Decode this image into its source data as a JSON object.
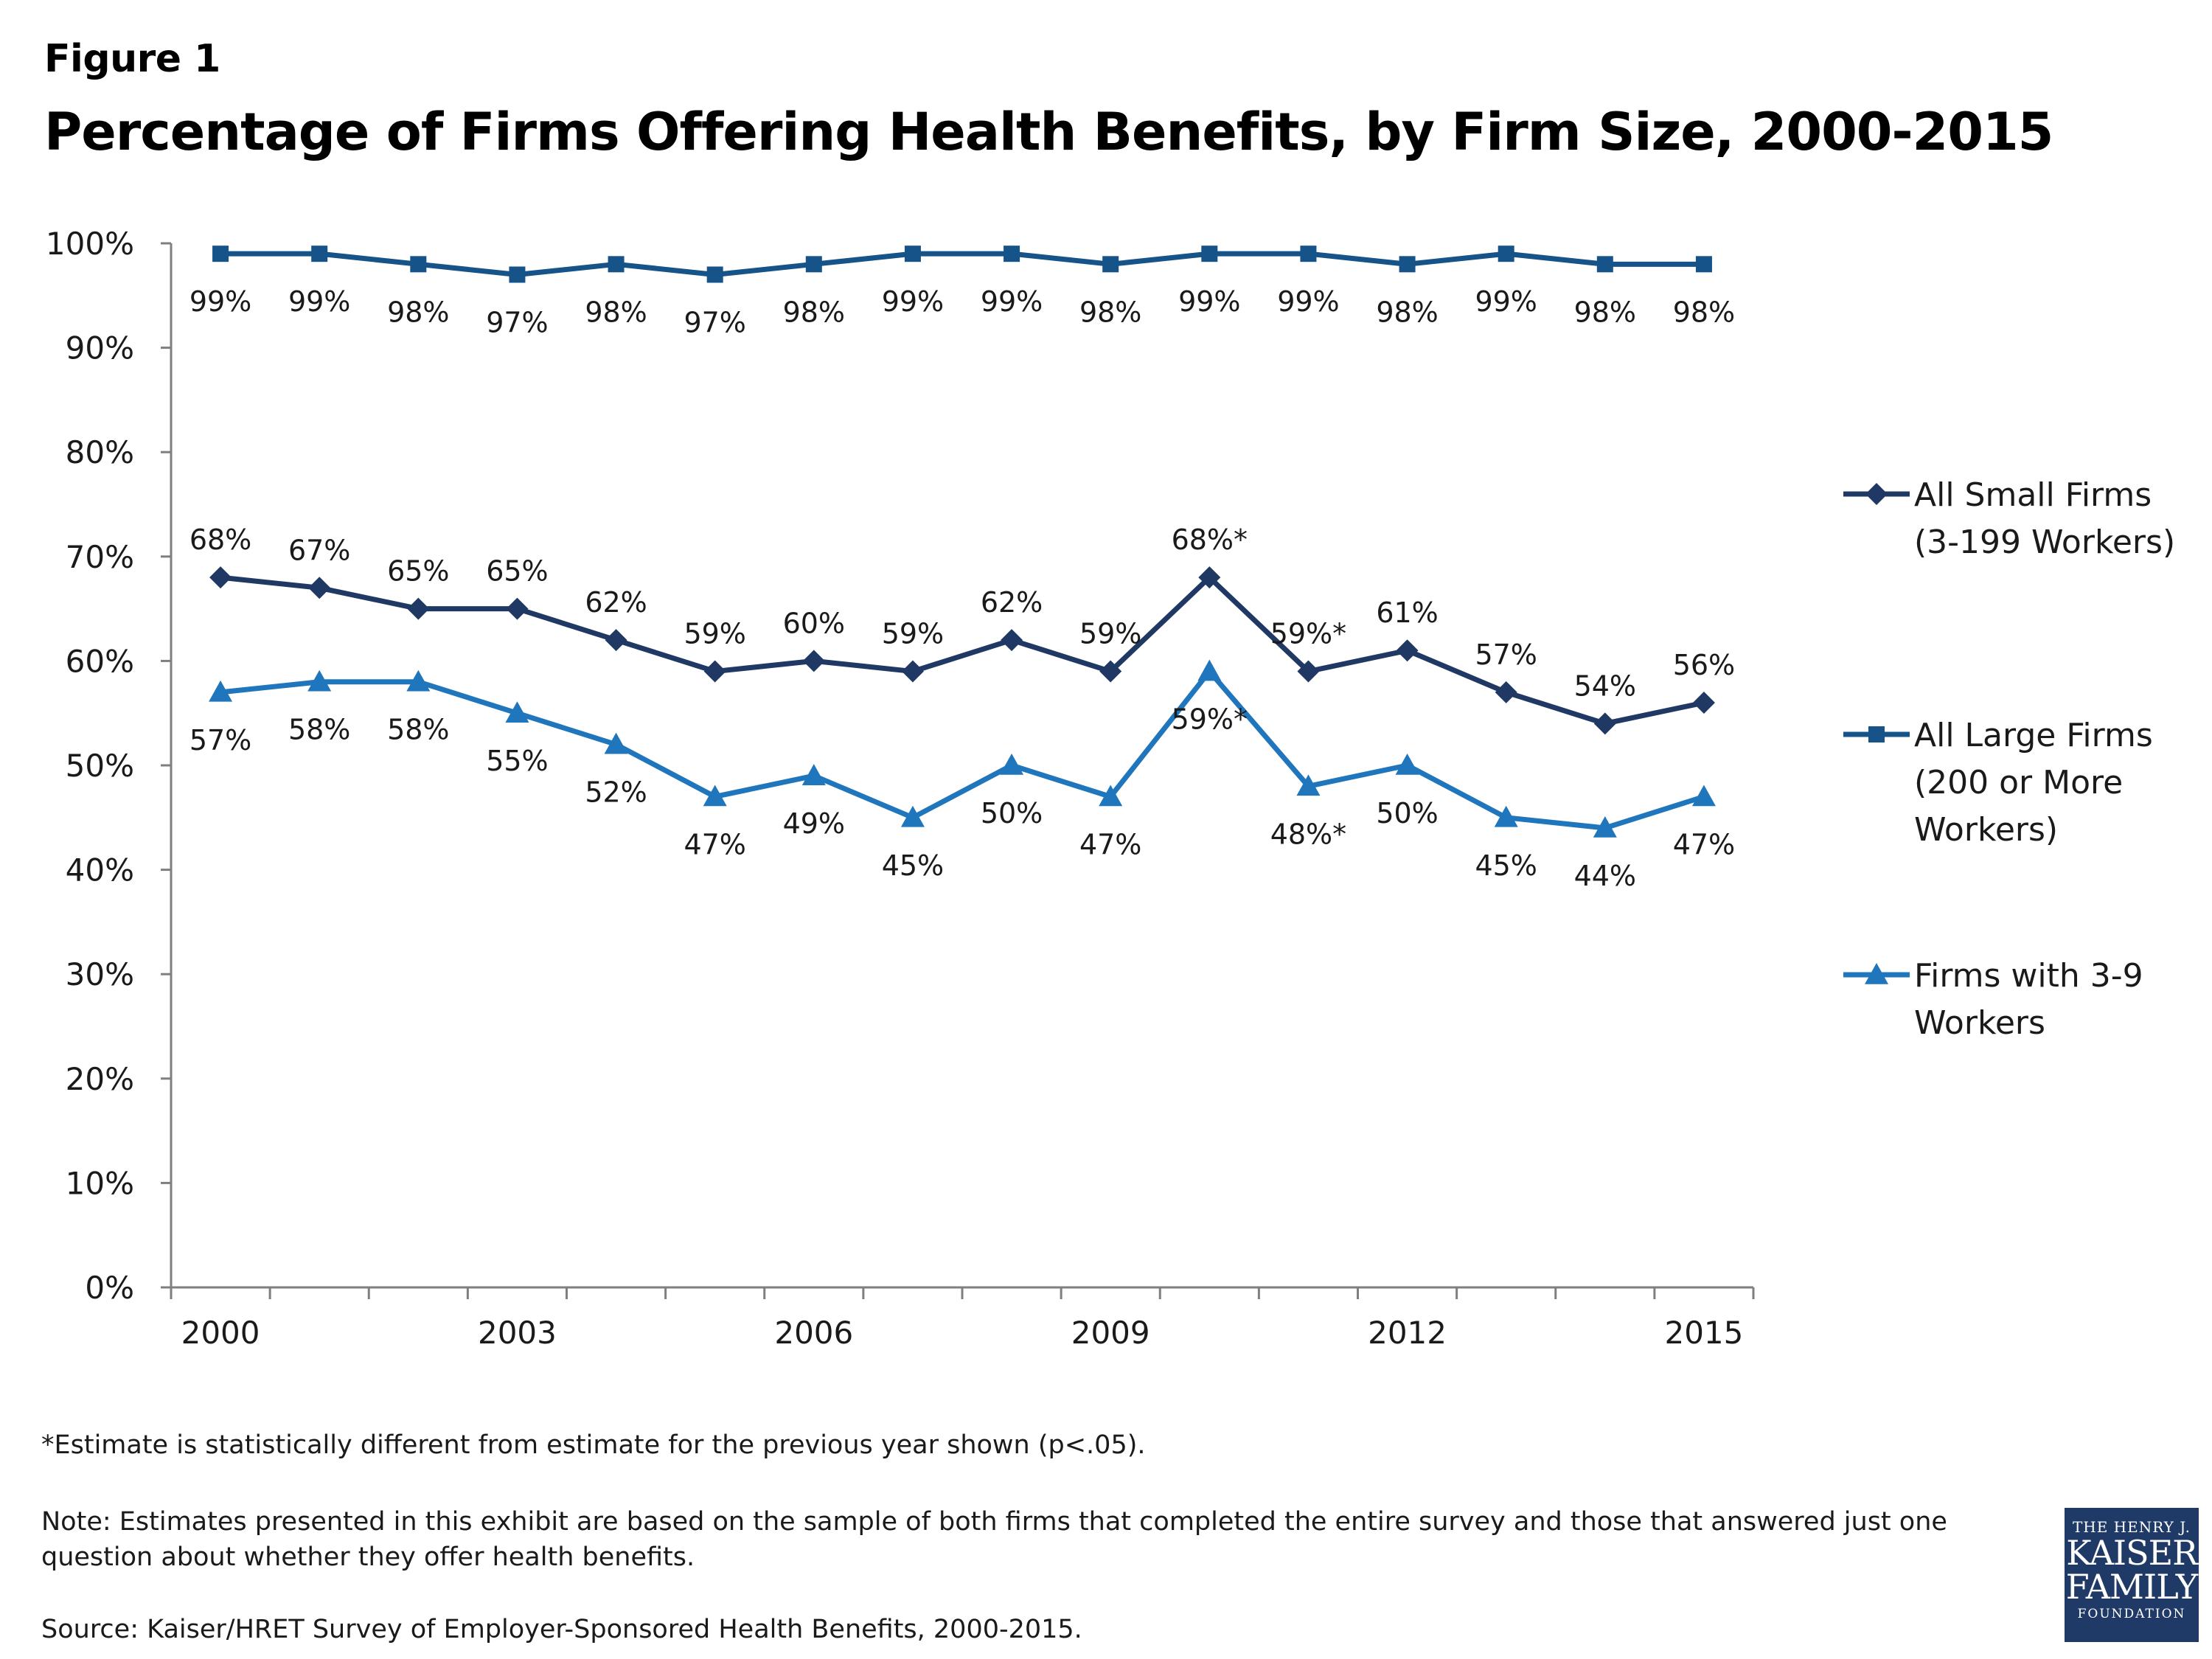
{
  "header": {
    "figure_label": "Figure 1",
    "title": "Percentage of Firms Offering Health Benefits, by Firm Size, 2000-2015"
  },
  "chart_data": {
    "type": "line",
    "x": [
      2000,
      2001,
      2002,
      2003,
      2004,
      2005,
      2006,
      2007,
      2008,
      2009,
      2010,
      2011,
      2012,
      2013,
      2014,
      2015
    ],
    "x_tick_labels": [
      "2000",
      "2003",
      "2006",
      "2009",
      "2012",
      "2015"
    ],
    "x_tick_years": [
      2000,
      2003,
      2006,
      2009,
      2012,
      2015
    ],
    "y_tick_labels": [
      "0%",
      "10%",
      "20%",
      "30%",
      "40%",
      "50%",
      "60%",
      "70%",
      "80%",
      "90%",
      "100%"
    ],
    "ylim": [
      0,
      100
    ],
    "grid": false,
    "legend_position": "right",
    "series": [
      {
        "name": "All Small Firms (3-199 Workers)",
        "legend_lines": [
          "All Small Firms",
          "(3-199 Workers)"
        ],
        "marker": "diamond",
        "color": "#1f3864",
        "values": [
          68,
          67,
          65,
          65,
          62,
          59,
          60,
          59,
          62,
          59,
          68,
          59,
          61,
          57,
          54,
          56
        ],
        "labels": [
          "68%",
          "67%",
          "65%",
          "65%",
          "62%",
          "59%",
          "60%",
          "59%",
          "62%",
          "59%",
          "68%*",
          "59%*",
          "61%",
          "57%",
          "54%",
          "56%"
        ]
      },
      {
        "name": "All Large Firms (200 or More Workers)",
        "legend_lines": [
          "All Large Firms",
          "(200 or More",
          "Workers)"
        ],
        "marker": "square",
        "color": "#165389",
        "values": [
          99,
          99,
          98,
          97,
          98,
          97,
          98,
          99,
          99,
          98,
          99,
          99,
          98,
          99,
          98,
          98
        ],
        "labels": [
          "99%",
          "99%",
          "98%",
          "97%",
          "98%",
          "97%",
          "98%",
          "99%",
          "99%",
          "98%",
          "99%",
          "99%",
          "98%",
          "99%",
          "98%",
          "98%"
        ]
      },
      {
        "name": "Firms with 3-9 Workers",
        "legend_lines": [
          "Firms with 3-9",
          "Workers"
        ],
        "marker": "triangle",
        "color": "#1f76bc",
        "values": [
          57,
          58,
          58,
          55,
          52,
          47,
          49,
          45,
          50,
          47,
          59,
          48,
          50,
          45,
          44,
          47
        ],
        "labels": [
          "57%",
          "58%",
          "58%",
          "55%",
          "52%",
          "47%",
          "49%",
          "45%",
          "50%",
          "47%",
          "59%*",
          "48%*",
          "50%",
          "45%",
          "44%",
          "47%"
        ]
      }
    ]
  },
  "footnotes": {
    "significance": "*Estimate is statistically different from estimate for the previous year shown (p<.05).",
    "note": "Note: Estimates presented in this exhibit are based on the sample of both firms that completed the entire survey and those that answered just one question about whether they offer health benefits.",
    "source": "Source:  Kaiser/HRET Survey of Employer-Sponsored Health Benefits, 2000-2015."
  },
  "logo": {
    "top_line": "THE HENRY J.",
    "line1": "KAISER",
    "line2": "FAMILY",
    "bottom_line": "FOUNDATION"
  }
}
